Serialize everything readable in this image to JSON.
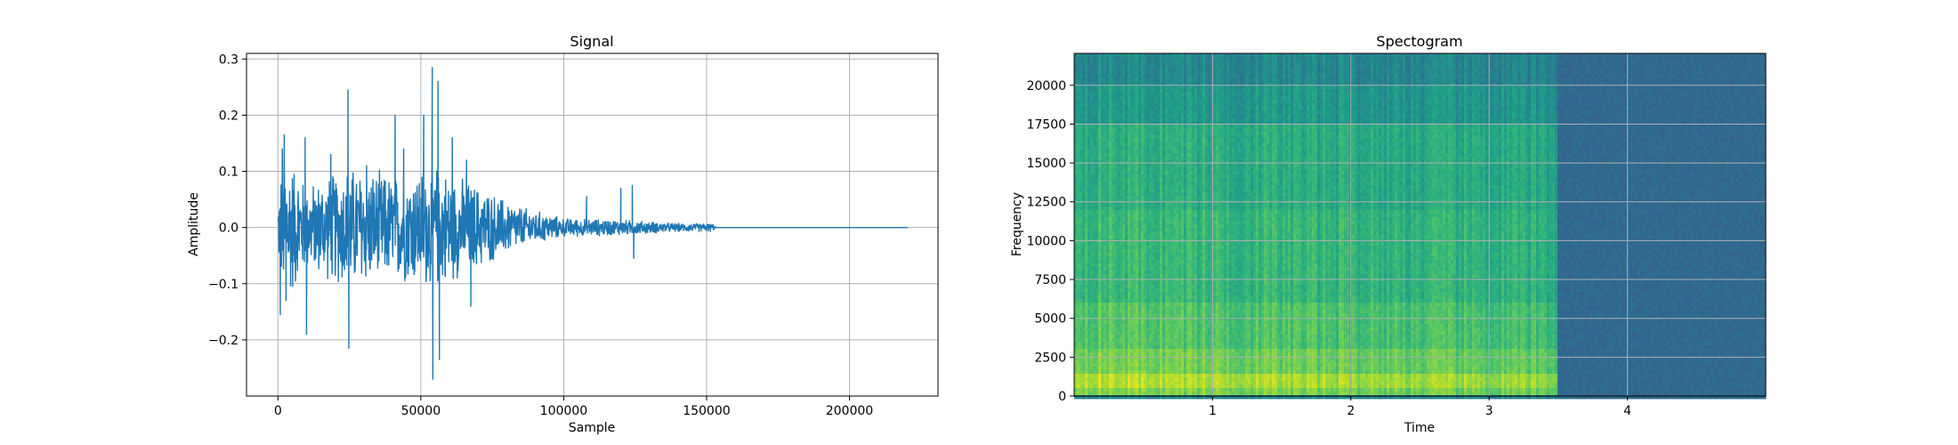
{
  "colors": {
    "signal_line": "#1f77b4",
    "grid": "#b0b0b0",
    "spine": "#000000"
  },
  "chart_data": [
    {
      "type": "line",
      "title": "Signal",
      "xlabel": "Sample",
      "ylabel": "Amplitude",
      "xlim": [
        -11000,
        231000
      ],
      "ylim": [
        -0.3,
        0.31
      ],
      "xticks": [
        0,
        50000,
        100000,
        150000,
        200000
      ],
      "xtick_labels": [
        "0",
        "50000",
        "100000",
        "150000",
        "200000"
      ],
      "yticks": [
        -0.2,
        -0.1,
        0.0,
        0.1,
        0.2,
        0.3
      ],
      "ytick_labels": [
        "−0.2",
        "−0.1",
        "0.0",
        "0.1",
        "0.2",
        "0.3"
      ],
      "grid": true,
      "x_end": 220500,
      "envelope": [
        {
          "x": 0,
          "amp": 0.05
        },
        {
          "x": 2000,
          "amp": 0.16
        },
        {
          "x": 10000,
          "amp": 0.08
        },
        {
          "x": 25000,
          "amp": 0.12
        },
        {
          "x": 40000,
          "amp": 0.1
        },
        {
          "x": 55000,
          "amp": 0.12
        },
        {
          "x": 70000,
          "amp": 0.08
        },
        {
          "x": 85000,
          "amp": 0.04
        },
        {
          "x": 100000,
          "amp": 0.018
        },
        {
          "x": 120000,
          "amp": 0.015
        },
        {
          "x": 140000,
          "amp": 0.008
        },
        {
          "x": 152000,
          "amp": 0.008
        },
        {
          "x": 153500,
          "amp": 0.0
        },
        {
          "x": 220500,
          "amp": 0.0
        }
      ],
      "spikes": [
        {
          "x": 800,
          "y": -0.155
        },
        {
          "x": 1500,
          "y": 0.14
        },
        {
          "x": 2200,
          "y": 0.165
        },
        {
          "x": 2800,
          "y": -0.13
        },
        {
          "x": 9500,
          "y": 0.16
        },
        {
          "x": 10000,
          "y": -0.19
        },
        {
          "x": 18500,
          "y": 0.13
        },
        {
          "x": 24500,
          "y": 0.245
        },
        {
          "x": 24800,
          "y": -0.215
        },
        {
          "x": 31000,
          "y": 0.11
        },
        {
          "x": 41000,
          "y": 0.2
        },
        {
          "x": 44000,
          "y": 0.14
        },
        {
          "x": 51000,
          "y": 0.2
        },
        {
          "x": 54000,
          "y": 0.285
        },
        {
          "x": 54200,
          "y": -0.27
        },
        {
          "x": 56000,
          "y": 0.26
        },
        {
          "x": 56500,
          "y": -0.235
        },
        {
          "x": 61000,
          "y": 0.16
        },
        {
          "x": 66000,
          "y": 0.12
        },
        {
          "x": 67500,
          "y": -0.14
        },
        {
          "x": 108000,
          "y": 0.055
        },
        {
          "x": 120000,
          "y": 0.07
        },
        {
          "x": 124000,
          "y": 0.075
        },
        {
          "x": 124500,
          "y": -0.055
        }
      ]
    },
    {
      "type": "heatmap",
      "title": "Spectogram",
      "xlabel": "Time",
      "ylabel": "Frequency",
      "xlim": [
        0,
        5.0
      ],
      "ylim": [
        0,
        22050
      ],
      "xticks": [
        1,
        2,
        3,
        4
      ],
      "xtick_labels": [
        "1",
        "2",
        "3",
        "4"
      ],
      "yticks": [
        0,
        2500,
        5000,
        7500,
        10000,
        12500,
        15000,
        17500,
        20000
      ],
      "ytick_labels": [
        "0",
        "2500",
        "5000",
        "7500",
        "10000",
        "12500",
        "15000",
        "17500",
        "20000"
      ],
      "grid": true,
      "colormap": "viridis",
      "signal_end_time": 3.5,
      "bands": [
        {
          "f_from": 0,
          "f_to": 500,
          "level": 0.82
        },
        {
          "f_from": 500,
          "f_to": 1500,
          "level": 0.9
        },
        {
          "f_from": 1500,
          "f_to": 3000,
          "level": 0.8
        },
        {
          "f_from": 3000,
          "f_to": 6000,
          "level": 0.74
        },
        {
          "f_from": 6000,
          "f_to": 12000,
          "level": 0.68
        },
        {
          "f_from": 12000,
          "f_to": 17500,
          "level": 0.64
        },
        {
          "f_from": 17500,
          "f_to": 20000,
          "level": 0.55
        },
        {
          "f_from": 20000,
          "f_to": 22050,
          "level": 0.48
        }
      ],
      "background_level": 0.34
    }
  ]
}
